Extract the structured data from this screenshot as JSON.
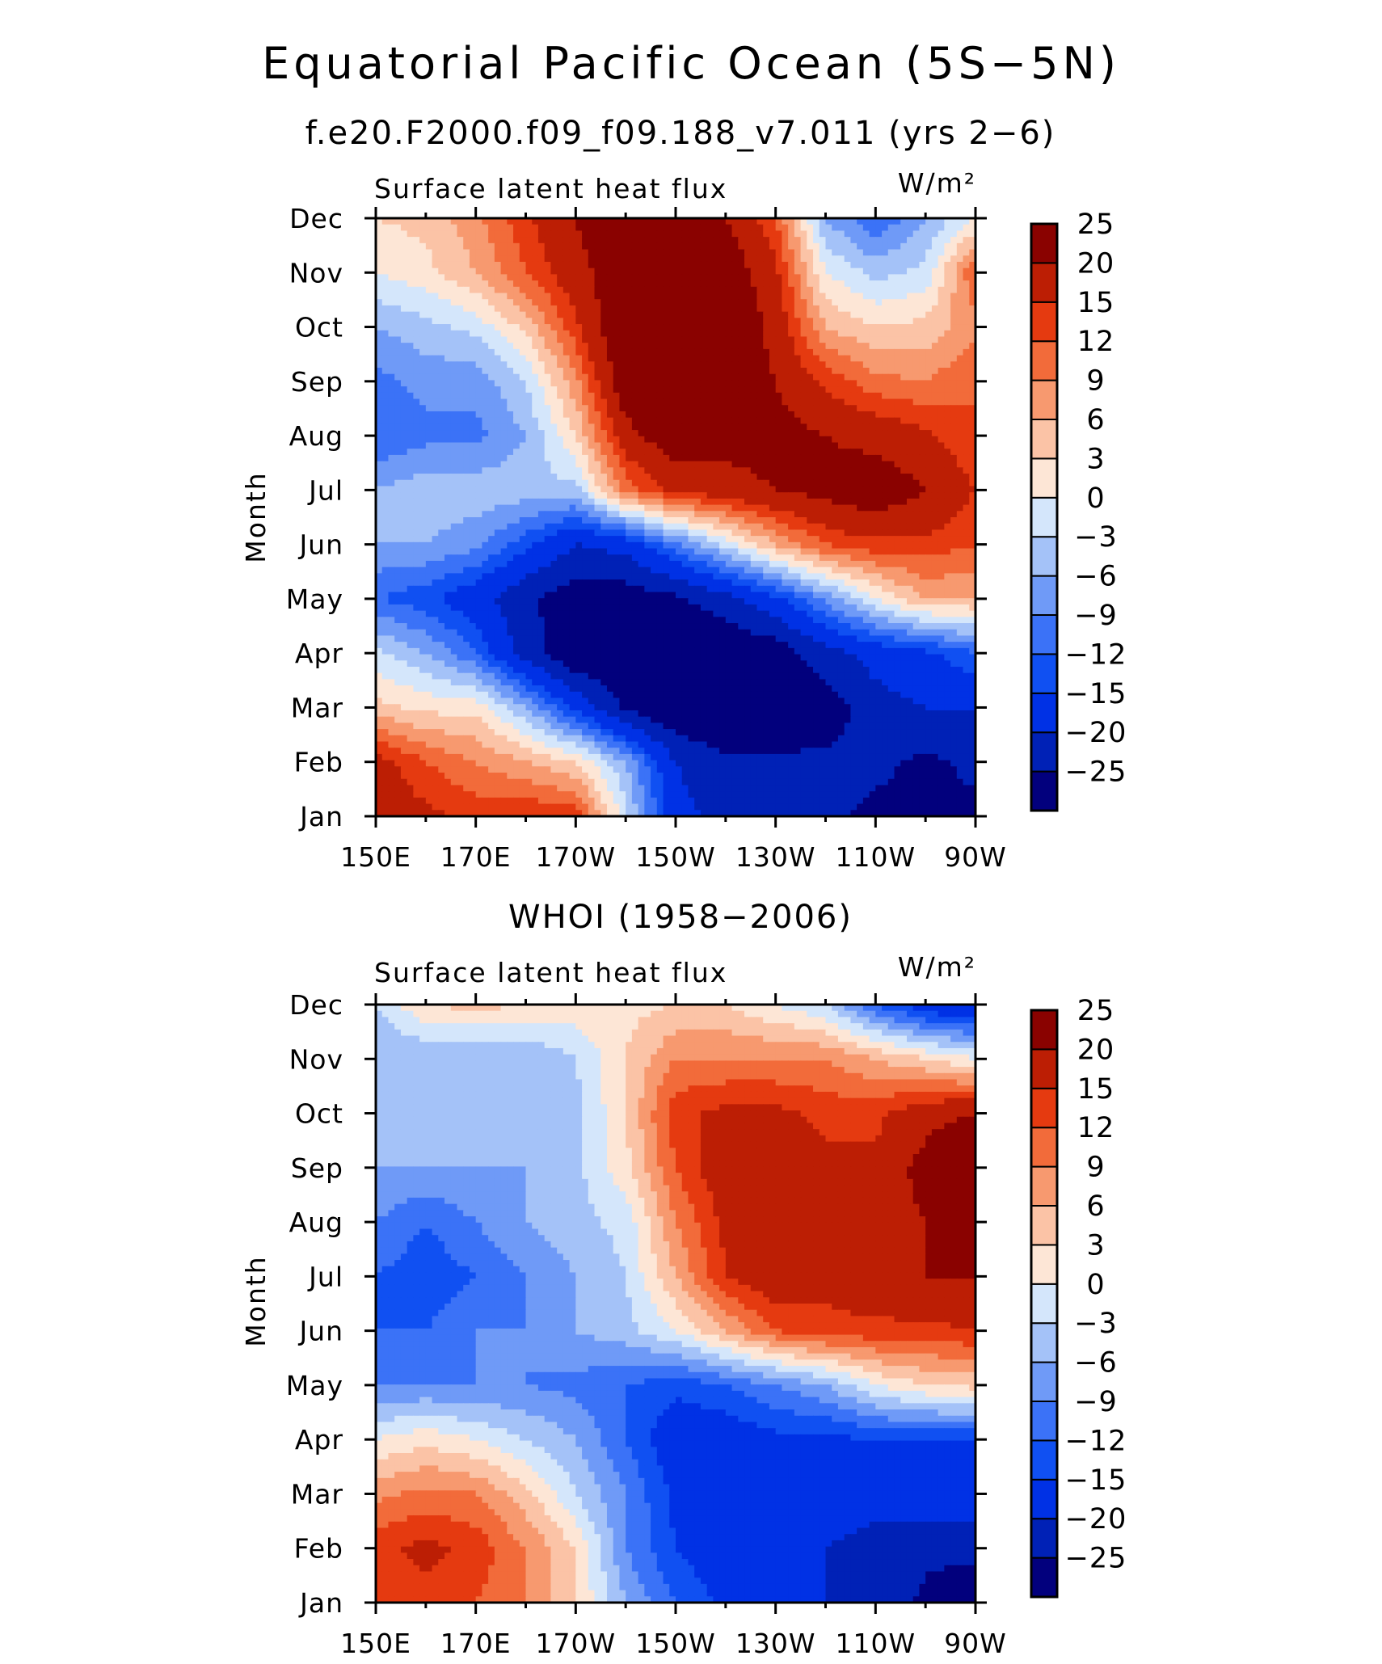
{
  "title": "Equatorial Pacific Ocean (5S−5N)",
  "chart_data": [
    {
      "type": "heatmap",
      "subtitle": "f.e20.F2000.f09_f09.188_v7.011 (yrs 2−6)",
      "left_label": "Surface latent heat flux",
      "units": "W/m²",
      "ylabel": "Month",
      "x_ticks": [
        "150E",
        "170E",
        "170W",
        "150W",
        "130W",
        "110W",
        "90W"
      ],
      "y_ticks": [
        "Jan",
        "Feb",
        "Mar",
        "Apr",
        "May",
        "Jun",
        "Jul",
        "Aug",
        "Sep",
        "Oct",
        "Nov",
        "Dec"
      ],
      "levels": [
        "−25",
        "−20",
        "−15",
        "−12",
        "−9",
        "−6",
        "−3",
        "0",
        "3",
        "6",
        "9",
        "12",
        "15",
        "20",
        "25"
      ],
      "x": [
        150,
        160,
        170,
        180,
        190,
        200,
        210,
        220,
        230,
        240,
        250,
        260,
        270
      ],
      "y": [
        1,
        2,
        3,
        4,
        5,
        6,
        7,
        8,
        9,
        10,
        11,
        12
      ],
      "values": [
        [
          18,
          16,
          14,
          15,
          14,
          -2,
          -18,
          -22,
          -22,
          -24,
          -26,
          -26,
          -26
        ],
        [
          17,
          12,
          9,
          6,
          3,
          -6,
          -20,
          -24,
          -24,
          -24,
          -24,
          -26,
          -24
        ],
        [
          4,
          2,
          2,
          -6,
          -16,
          -26,
          -30,
          -30,
          -30,
          -28,
          -22,
          -20,
          -20
        ],
        [
          -2,
          -6,
          -12,
          -22,
          -30,
          -30,
          -30,
          -30,
          -28,
          -22,
          -18,
          -16,
          -12
        ],
        [
          -12,
          -14,
          -18,
          -24,
          -28,
          -28,
          -26,
          -22,
          -16,
          -8,
          0,
          6,
          6
        ],
        [
          -6,
          -6,
          -8,
          -14,
          -20,
          -18,
          -10,
          -2,
          6,
          12,
          14,
          14,
          12
        ],
        [
          -6,
          -4,
          -4,
          -4,
          -4,
          10,
          16,
          18,
          20,
          22,
          24,
          20,
          15
        ],
        [
          -12,
          -10,
          -10,
          -6,
          3,
          18,
          24,
          22,
          22,
          20,
          18,
          16,
          12
        ],
        [
          -10,
          -8,
          -8,
          -3,
          8,
          24,
          28,
          24,
          20,
          14,
          10,
          9,
          12
        ],
        [
          -6,
          -4,
          -2,
          4,
          14,
          26,
          28,
          26,
          18,
          6,
          3,
          4,
          8
        ],
        [
          0,
          2,
          6,
          12,
          18,
          24,
          26,
          24,
          16,
          0,
          -4,
          -2,
          12
        ],
        [
          3,
          4,
          8,
          14,
          20,
          26,
          24,
          20,
          12,
          -6,
          -12,
          -6,
          0
        ]
      ]
    },
    {
      "type": "heatmap",
      "subtitle": "WHOI (1958−2006)",
      "left_label": "Surface latent heat flux",
      "units": "W/m²",
      "ylabel": "Month",
      "x_ticks": [
        "150E",
        "170E",
        "170W",
        "150W",
        "130W",
        "110W",
        "90W"
      ],
      "y_ticks": [
        "Jan",
        "Feb",
        "Mar",
        "Apr",
        "May",
        "Jun",
        "Jul",
        "Aug",
        "Sep",
        "Oct",
        "Nov",
        "Dec"
      ],
      "levels": [
        "−25",
        "−20",
        "−15",
        "−12",
        "−9",
        "−6",
        "−3",
        "0",
        "3",
        "6",
        "9",
        "12",
        "15",
        "20",
        "25"
      ],
      "x": [
        150,
        160,
        170,
        180,
        190,
        200,
        210,
        220,
        230,
        240,
        250,
        260,
        270
      ],
      "y": [
        1,
        2,
        3,
        4,
        5,
        6,
        7,
        8,
        9,
        10,
        11,
        12
      ],
      "values": [
        [
          12,
          14,
          12,
          9,
          3,
          -6,
          -12,
          -16,
          -18,
          -20,
          -22,
          -26,
          -28
        ],
        [
          14,
          16,
          14,
          9,
          3,
          -9,
          -15,
          -18,
          -18,
          -20,
          -22,
          -24,
          -24
        ],
        [
          8,
          10,
          9,
          4,
          -3,
          -9,
          -16,
          -18,
          -18,
          -16,
          -18,
          -16,
          -16
        ],
        [
          0,
          2,
          0,
          -3,
          -6,
          -12,
          -18,
          -18,
          -16,
          -16,
          -15,
          -15,
          -15
        ],
        [
          -9,
          -9,
          -9,
          -9,
          -10,
          -12,
          -14,
          -12,
          -9,
          -6,
          0,
          3,
          4
        ],
        [
          -12,
          -12,
          -9,
          -9,
          -6,
          -4,
          0,
          6,
          12,
          14,
          14,
          14,
          15
        ],
        [
          -12,
          -14,
          -12,
          -9,
          -6,
          -3,
          6,
          15,
          18,
          16,
          18,
          20,
          20
        ],
        [
          -9,
          -12,
          -9,
          -6,
          -4,
          -2,
          9,
          16,
          20,
          18,
          18,
          20,
          22
        ],
        [
          -6,
          -6,
          -6,
          -6,
          -4,
          2,
          12,
          18,
          20,
          16,
          16,
          22,
          28
        ],
        [
          -4,
          -4,
          -4,
          -6,
          -4,
          3,
          14,
          16,
          16,
          14,
          14,
          18,
          20
        ],
        [
          -6,
          -6,
          -6,
          -6,
          -3,
          3,
          9,
          9,
          9,
          9,
          6,
          3,
          0
        ],
        [
          -3,
          3,
          4,
          3,
          2,
          2,
          3,
          3,
          0,
          -3,
          -12,
          -18,
          -20
        ]
      ]
    }
  ],
  "colors": {
    "palette": [
      "#02007d",
      "#0021b6",
      "#0031e5",
      "#1050f2",
      "#3b72f7",
      "#6f9af7",
      "#a4c2f8",
      "#d4e6fb",
      "#fde6d6",
      "#fbc3a6",
      "#f7996f",
      "#f26b3a",
      "#e53a10",
      "#bc1e04",
      "#8a0200"
    ]
  }
}
